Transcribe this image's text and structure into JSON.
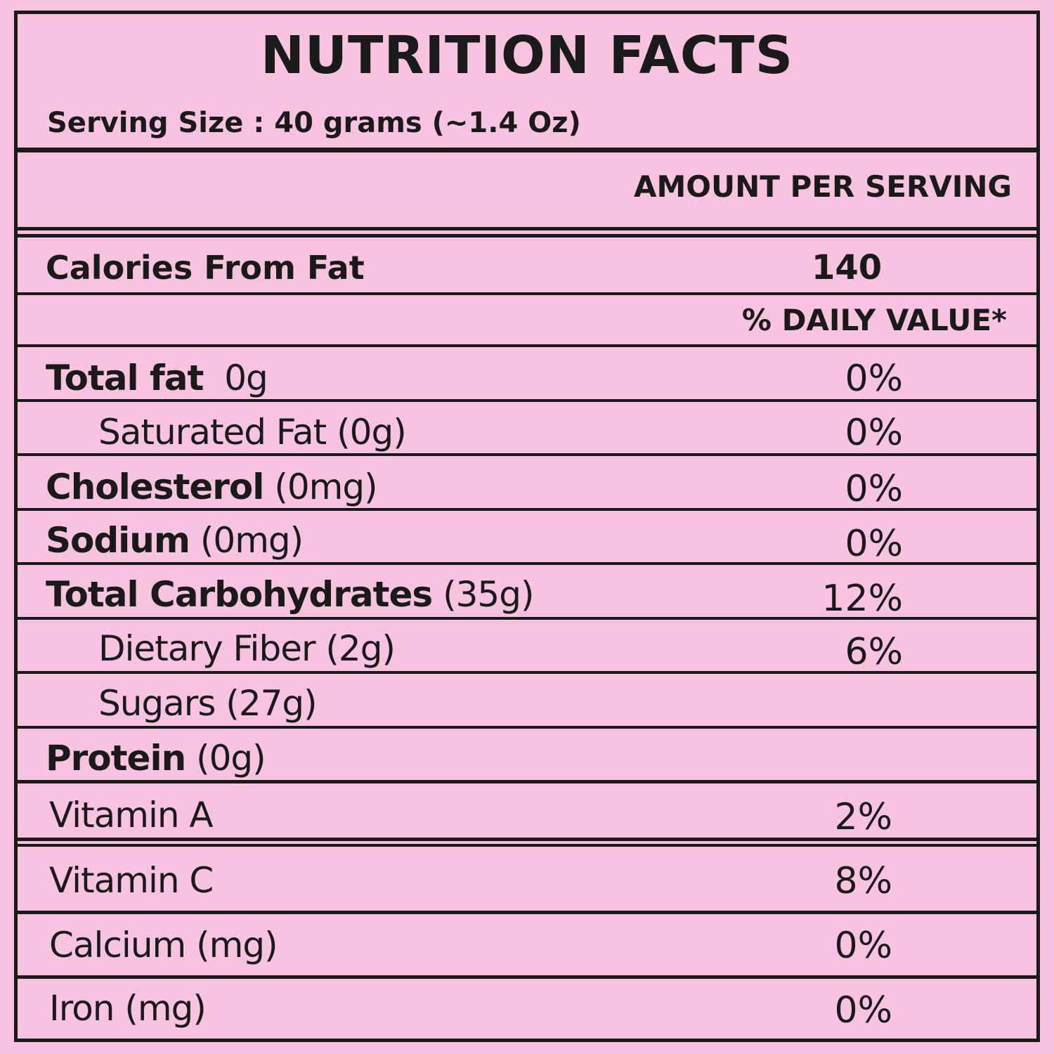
{
  "title": "NUTRITION FACTS",
  "serving_size": "Serving Size : 40 grams (~1.4 Oz)",
  "amount_per_serving": "AMOUNT PER SERVING",
  "calories_from_fat": {
    "label": "Calories From Fat",
    "value": "140"
  },
  "daily_value_header": "% DAILY VALUE*",
  "nutrients": [
    {
      "name": "Total fat",
      "amount": "0g",
      "dv": "0%"
    },
    {
      "name": "Saturated Fat (0g)",
      "amount": "",
      "dv": "0%"
    },
    {
      "name": "Cholesterol",
      "amount": "(0mg)",
      "dv": "0%"
    },
    {
      "name": "Sodium",
      "amount": "(0mg)",
      "dv": "0%"
    },
    {
      "name": "Total Carbohydrates",
      "amount": "(35g)",
      "dv": "12%"
    },
    {
      "name": "Dietary Fiber (2g)",
      "amount": "",
      "dv": "6%"
    },
    {
      "name": "Sugars (27g)",
      "amount": "",
      "dv": ""
    },
    {
      "name": "Protein",
      "amount": "(0g)",
      "dv": ""
    }
  ],
  "vitamins": [
    {
      "name": "Vitamin A",
      "dv": "2%"
    },
    {
      "name": "Vitamin C",
      "dv": "8%"
    },
    {
      "name": "Calcium (mg)",
      "dv": "0%"
    },
    {
      "name": "Iron (mg)",
      "dv": "0%"
    }
  ],
  "colors": {
    "background": "#f7c3e0",
    "ink": "#1a1a1a"
  }
}
